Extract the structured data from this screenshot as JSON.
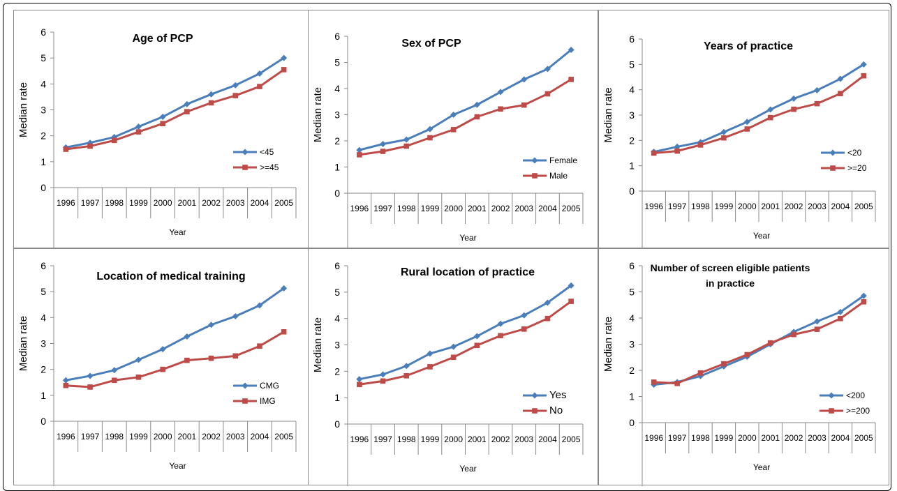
{
  "chart_data": [
    {
      "type": "line",
      "title": [
        "Age of PCP"
      ],
      "xlabel": "Year",
      "ylabel": "Median rate",
      "ylim": [
        0,
        6
      ],
      "yticks": [
        "0",
        "1",
        "2",
        "3",
        "4",
        "5",
        "6"
      ],
      "categories": [
        "1996",
        "1997",
        "1998",
        "1999",
        "2000",
        "2001",
        "2002",
        "2003",
        "2004",
        "2005"
      ],
      "legend_position": "right",
      "series": [
        {
          "name": "<45",
          "color": "#4a7ebb",
          "marker": "diamond",
          "values": [
            1.55,
            1.73,
            1.95,
            2.35,
            2.73,
            3.22,
            3.6,
            3.95,
            4.4,
            5.0
          ]
        },
        {
          "name": ">=45",
          "color": "#be4b48",
          "marker": "square",
          "values": [
            1.48,
            1.6,
            1.82,
            2.15,
            2.47,
            2.93,
            3.27,
            3.55,
            3.9,
            4.55
          ]
        }
      ]
    },
    {
      "type": "line",
      "title": [
        "Sex of  PCP"
      ],
      "xlabel": "Year",
      "ylabel": "Median rate",
      "ylim": [
        0,
        6
      ],
      "yticks": [
        "0",
        "1",
        "2",
        "3",
        "4",
        "5",
        "6"
      ],
      "categories": [
        "1996",
        "1997",
        "1998",
        "1999",
        "2000",
        "2001",
        "2002",
        "2003",
        "2004",
        "2005"
      ],
      "legend_position": "right",
      "series": [
        {
          "name": "Female",
          "color": "#4a7ebb",
          "marker": "diamond",
          "values": [
            1.65,
            1.88,
            2.05,
            2.45,
            3.0,
            3.38,
            3.87,
            4.35,
            4.75,
            5.48
          ]
        },
        {
          "name": "Male",
          "color": "#be4b48",
          "marker": "square",
          "values": [
            1.47,
            1.6,
            1.8,
            2.12,
            2.43,
            2.92,
            3.22,
            3.37,
            3.8,
            4.35
          ]
        }
      ]
    },
    {
      "type": "line",
      "title": [
        "Years of practice"
      ],
      "xlabel": "Year",
      "ylabel": "Median rate",
      "ylim": [
        0,
        6
      ],
      "yticks": [
        "0",
        "1",
        "2",
        "3",
        "4",
        "5",
        "6"
      ],
      "categories": [
        "1996",
        "1997",
        "1998",
        "1999",
        "2000",
        "2001",
        "2002",
        "2003",
        "2004",
        "2005"
      ],
      "legend_position": "right",
      "series": [
        {
          "name": "<20",
          "color": "#4a7ebb",
          "marker": "diamond",
          "values": [
            1.55,
            1.75,
            1.93,
            2.33,
            2.73,
            3.22,
            3.65,
            3.98,
            4.43,
            5.0
          ]
        },
        {
          "name": ">=20",
          "color": "#be4b48",
          "marker": "square",
          "values": [
            1.5,
            1.58,
            1.82,
            2.1,
            2.45,
            2.9,
            3.23,
            3.45,
            3.85,
            4.55
          ]
        }
      ]
    },
    {
      "type": "line",
      "title": [
        "Location of medical training"
      ],
      "xlabel": "Year",
      "ylabel": "Median rate",
      "ylim": [
        0,
        6
      ],
      "yticks": [
        "0",
        "1",
        "2",
        "3",
        "4",
        "5",
        "6"
      ],
      "categories": [
        "1996",
        "1997",
        "1998",
        "1999",
        "2000",
        "2001",
        "2002",
        "2003",
        "2004",
        "2005"
      ],
      "legend_position": "right",
      "series": [
        {
          "name": "CMG",
          "color": "#4a7ebb",
          "marker": "diamond",
          "values": [
            1.58,
            1.75,
            1.97,
            2.37,
            2.78,
            3.27,
            3.72,
            4.05,
            4.47,
            5.13
          ]
        },
        {
          "name": "IMG",
          "color": "#be4b48",
          "marker": "square",
          "values": [
            1.38,
            1.32,
            1.58,
            1.7,
            2.0,
            2.35,
            2.43,
            2.52,
            2.9,
            3.45
          ]
        }
      ]
    },
    {
      "type": "line",
      "title": [
        "Rural location of practice"
      ],
      "xlabel": "Year",
      "ylabel": "Median rate",
      "ylim": [
        0,
        6
      ],
      "yticks": [
        "0",
        "1",
        "2",
        "3",
        "4",
        "5",
        "6"
      ],
      "categories": [
        "1996",
        "1997",
        "1998",
        "1999",
        "2000",
        "2001",
        "2002",
        "2003",
        "2004",
        "2005"
      ],
      "legend_position": "right",
      "series": [
        {
          "name": "Yes",
          "color": "#4a7ebb",
          "marker": "diamond",
          "values": [
            1.7,
            1.88,
            2.2,
            2.67,
            2.93,
            3.33,
            3.8,
            4.12,
            4.6,
            5.25
          ]
        },
        {
          "name": "No",
          "color": "#be4b48",
          "marker": "square",
          "values": [
            1.5,
            1.63,
            1.83,
            2.17,
            2.53,
            2.98,
            3.35,
            3.6,
            4.0,
            4.65
          ]
        }
      ]
    },
    {
      "type": "line",
      "title": [
        "Number of screen eligible patients",
        "in practice"
      ],
      "xlabel": "Year",
      "ylabel": "Median rate",
      "ylim": [
        0,
        6
      ],
      "yticks": [
        "0",
        "1",
        "2",
        "3",
        "4",
        "5",
        "6"
      ],
      "categories": [
        "1996",
        "1997",
        "1998",
        "1999",
        "2000",
        "2001",
        "2002",
        "2003",
        "2004",
        "2005"
      ],
      "legend_position": "right",
      "series": [
        {
          "name": "<200",
          "color": "#4a7ebb",
          "marker": "diamond",
          "values": [
            1.45,
            1.55,
            1.78,
            2.15,
            2.52,
            3.0,
            3.47,
            3.87,
            4.23,
            4.85
          ]
        },
        {
          "name": ">=200",
          "color": "#be4b48",
          "marker": "square",
          "values": [
            1.55,
            1.5,
            1.9,
            2.25,
            2.6,
            3.05,
            3.37,
            3.57,
            3.98,
            4.62
          ]
        }
      ]
    }
  ]
}
